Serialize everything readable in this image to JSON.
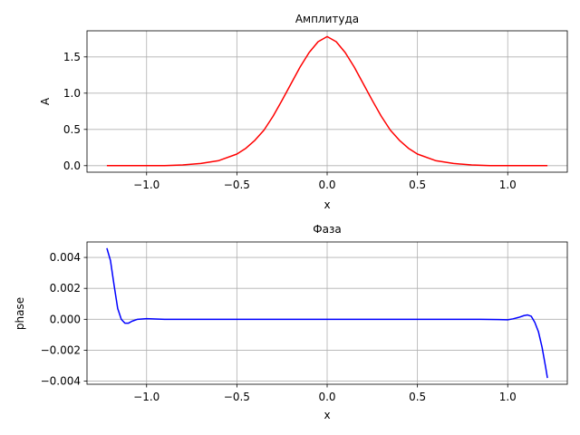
{
  "chart_data": [
    {
      "type": "line",
      "title": "Амплитуда",
      "xlabel": "x",
      "ylabel": "A",
      "xlim": [
        -1.33,
        1.33
      ],
      "ylim": [
        -0.09,
        1.86
      ],
      "grid": true,
      "x_ticks": [
        -1.0,
        -0.5,
        0.0,
        0.5,
        1.0
      ],
      "x_tick_labels": [
        "−1.0",
        "−0.5",
        "0.0",
        "0.5",
        "1.0"
      ],
      "y_ticks": [
        0.0,
        0.5,
        1.0,
        1.5
      ],
      "y_tick_labels": [
        "0.0",
        "0.5",
        "1.0",
        "1.5"
      ],
      "series": [
        {
          "color": "#ff0000",
          "x": [
            -1.22,
            -1.1,
            -1.0,
            -0.9,
            -0.8,
            -0.7,
            -0.6,
            -0.5,
            -0.45,
            -0.4,
            -0.35,
            -0.3,
            -0.25,
            -0.2,
            -0.15,
            -0.1,
            -0.05,
            0.0,
            0.05,
            0.1,
            0.15,
            0.2,
            0.25,
            0.3,
            0.35,
            0.4,
            0.45,
            0.5,
            0.6,
            0.7,
            0.8,
            0.9,
            1.0,
            1.1,
            1.22
          ],
          "y": [
            0.0,
            0.0,
            0.0,
            0.0,
            0.01,
            0.03,
            0.07,
            0.16,
            0.24,
            0.35,
            0.49,
            0.68,
            0.9,
            1.13,
            1.36,
            1.56,
            1.71,
            1.78,
            1.71,
            1.56,
            1.36,
            1.13,
            0.9,
            0.68,
            0.49,
            0.35,
            0.24,
            0.16,
            0.07,
            0.03,
            0.01,
            0.0,
            0.0,
            0.0,
            0.0
          ]
        }
      ]
    },
    {
      "type": "line",
      "title": "Фаза",
      "xlabel": "x",
      "ylabel": "phase",
      "xlim": [
        -1.33,
        1.33
      ],
      "ylim": [
        -0.0042,
        0.005
      ],
      "grid": true,
      "x_ticks": [
        -1.0,
        -0.5,
        0.0,
        0.5,
        1.0
      ],
      "x_tick_labels": [
        "−1.0",
        "−0.5",
        "0.0",
        "0.5",
        "1.0"
      ],
      "y_ticks": [
        -0.004,
        -0.002,
        0.0,
        0.002,
        0.004
      ],
      "y_tick_labels": [
        "−0.004",
        "−0.002",
        "0.000",
        "0.002",
        "0.004"
      ],
      "series": [
        {
          "color": "#0000ff",
          "x": [
            -1.22,
            -1.2,
            -1.18,
            -1.16,
            -1.14,
            -1.12,
            -1.1,
            -1.08,
            -1.05,
            -1.0,
            -0.95,
            -0.9,
            -0.8,
            -0.5,
            0.0,
            0.5,
            0.85,
            0.95,
            1.0,
            1.03,
            1.06,
            1.09,
            1.11,
            1.13,
            1.15,
            1.17,
            1.19,
            1.21,
            1.22
          ],
          "y": [
            0.0046,
            0.0038,
            0.0022,
            0.0007,
            0.0,
            -0.00025,
            -0.00025,
            -0.00012,
            0.0,
            4e-05,
            2e-05,
            0.0,
            0.0,
            0.0,
            0.0,
            0.0,
            0.0,
            -2e-05,
            -3e-05,
            3e-05,
            0.00012,
            0.00024,
            0.00028,
            0.0002,
            -0.0002,
            -0.0008,
            -0.0018,
            -0.0031,
            -0.0038
          ]
        }
      ]
    }
  ]
}
